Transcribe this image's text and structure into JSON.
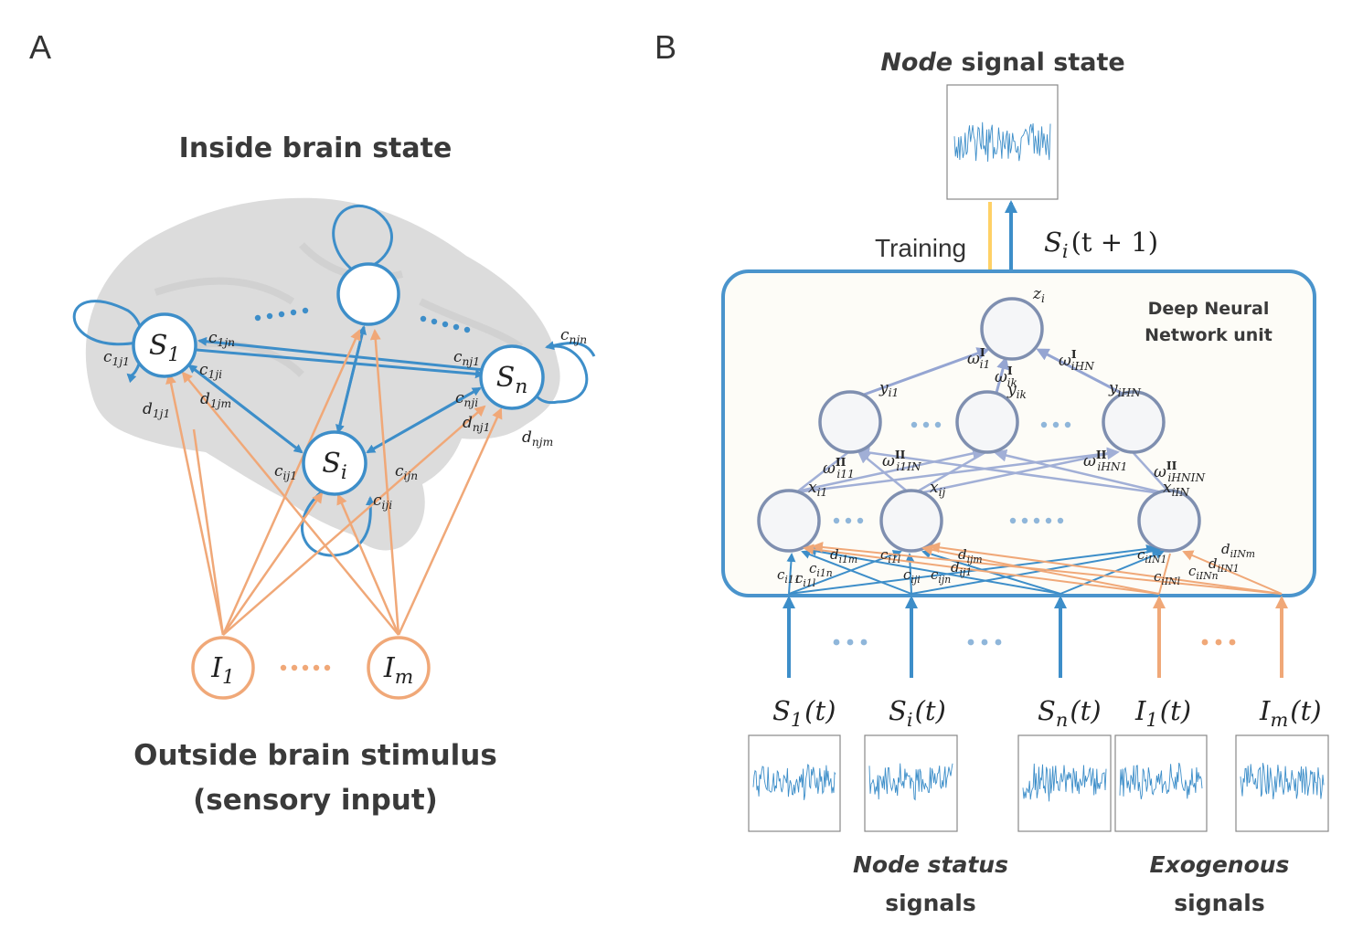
{
  "panel_a": {
    "letter": "A",
    "title": "Inside brain state",
    "bottom_title_line1": "Outside brain stimulus",
    "bottom_title_line2": "(sensory input)",
    "node_s1": "S",
    "node_s1_sub": "1",
    "node_si": "S",
    "node_si_sub": "i",
    "node_sn": "S",
    "node_sn_sub": "n",
    "node_i1": "I",
    "node_i1_sub": "1",
    "node_im": "I",
    "node_im_sub": "m",
    "labels": [
      {
        "b": "c",
        "s": "1jn"
      },
      {
        "b": "c",
        "s": "1j1"
      },
      {
        "b": "c",
        "s": "1ji"
      },
      {
        "b": "d",
        "s": "1jm"
      },
      {
        "b": "d",
        "s": "1j1"
      },
      {
        "b": "c",
        "s": "nj1"
      },
      {
        "b": "c",
        "s": "njn"
      },
      {
        "b": "c",
        "s": "nji"
      },
      {
        "b": "d",
        "s": "nj1"
      },
      {
        "b": "d",
        "s": "njm"
      },
      {
        "b": "c",
        "s": "ij1"
      },
      {
        "b": "c",
        "s": "ijn"
      },
      {
        "b": "c",
        "s": "iji"
      }
    ]
  },
  "panel_b": {
    "letter": "B",
    "top_title_italic": "Node",
    "top_title_rest": " signal state",
    "training_label": "Training",
    "output_label": "S",
    "output_sub": "i",
    "output_rest": "(t + 1)",
    "dnn_label_line1": "Deep Neural",
    "dnn_label_line2": "Network unit",
    "z_label": {
      "b": "z",
      "s": "i"
    },
    "y_labels": [
      {
        "b": "y",
        "s": "i1"
      },
      {
        "b": "y",
        "s": "ik"
      },
      {
        "b": "y",
        "s": "iHN"
      }
    ],
    "x_labels": [
      {
        "b": "x",
        "s": "i1"
      },
      {
        "b": "x",
        "s": "ij"
      },
      {
        "b": "x",
        "s": "iIN"
      }
    ],
    "w1_labels": [
      {
        "b": "ω",
        "sup": "I",
        "s": "i1"
      },
      {
        "b": "ω",
        "sup": "I",
        "s": "ik"
      },
      {
        "b": "ω",
        "sup": "I",
        "s": "iHN"
      }
    ],
    "w2_labels": [
      {
        "b": "ω",
        "sup": "II",
        "s": "i11"
      },
      {
        "b": "ω",
        "sup": "II",
        "s": "i1IN"
      },
      {
        "b": "ω",
        "sup": "II",
        "s": "iHN1"
      },
      {
        "b": "ω",
        "sup": "II",
        "s": "iHNIN"
      }
    ],
    "input_labels": [
      {
        "b": "c",
        "s": "i11"
      },
      {
        "b": "c",
        "s": "i1l"
      },
      {
        "b": "c",
        "s": "i1n"
      },
      {
        "b": "d",
        "s": "i1m"
      },
      {
        "b": "c",
        "s": "i1l"
      },
      {
        "b": "c",
        "s": "iji"
      },
      {
        "b": "c",
        "s": "ijn"
      },
      {
        "b": "d",
        "s": "ij1"
      },
      {
        "b": "d",
        "s": "ijm"
      },
      {
        "b": "c",
        "s": "iIN1"
      },
      {
        "b": "c",
        "s": "iINl"
      },
      {
        "b": "c",
        "s": "iINn"
      },
      {
        "b": "d",
        "s": "iIN1"
      },
      {
        "b": "d",
        "s": "iINm"
      }
    ],
    "signals": [
      {
        "b": "S",
        "s": "1",
        "r": "(t)"
      },
      {
        "b": "S",
        "s": "i",
        "r": "(t)"
      },
      {
        "b": "S",
        "s": "n",
        "r": "(t)"
      },
      {
        "b": "I",
        "s": "1",
        "r": "(t)"
      },
      {
        "b": "I",
        "s": "m",
        "r": "(t)"
      }
    ],
    "node_status_line1": "Node status",
    "node_status_line2": "signals",
    "exogenous_line1": "Exogenous",
    "exogenous_line2": "signals"
  },
  "colors": {
    "blue": "#3d8ec9",
    "orange": "#f0a878",
    "yellow": "#ffd166",
    "dnn_blue": "#8396cc",
    "node_fill": "#f5f6f8",
    "node_stroke": "#7f8fb0",
    "brain_gray": "#d9d9d9"
  }
}
